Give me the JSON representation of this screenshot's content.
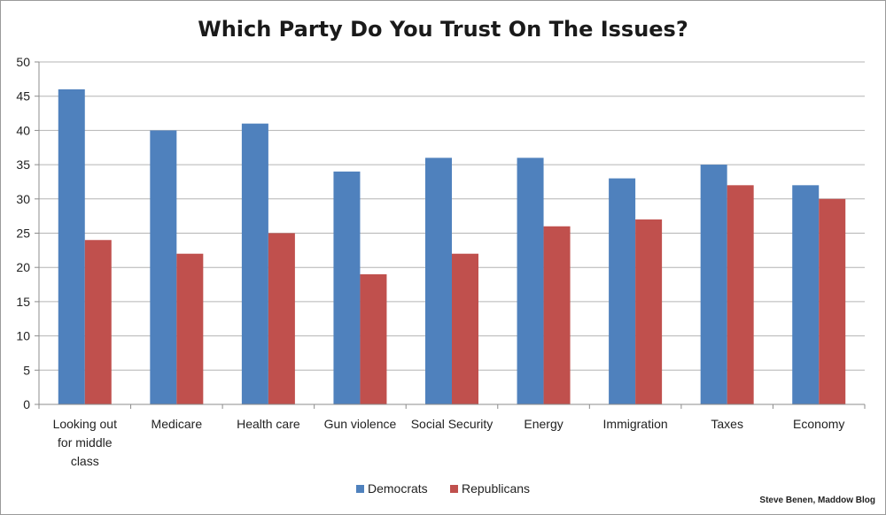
{
  "chart_data": {
    "type": "bar",
    "title": "Which Party Do You Trust On The Issues?",
    "xlabel": "",
    "ylabel": "",
    "ylim": [
      0,
      50
    ],
    "yticks": [
      0,
      5,
      10,
      15,
      20,
      25,
      30,
      35,
      40,
      45,
      50
    ],
    "grid": true,
    "legend": "bottom",
    "categories": [
      [
        "Looking out",
        "for middle",
        "class"
      ],
      [
        "Medicare"
      ],
      [
        "Health care"
      ],
      [
        "Gun violence"
      ],
      [
        "Social Security"
      ],
      [
        "Energy"
      ],
      [
        "Immigration"
      ],
      [
        "Taxes"
      ],
      [
        "Economy"
      ]
    ],
    "series": [
      {
        "name": "Democrats",
        "color": "#4f81bd",
        "values": [
          46,
          40,
          41,
          34,
          36,
          36,
          33,
          35,
          32
        ]
      },
      {
        "name": "Republicans",
        "color": "#c0504d",
        "values": [
          24,
          22,
          25,
          19,
          22,
          26,
          27,
          32,
          30
        ]
      }
    ]
  },
  "credit": "Steve Benen, Maddow Blog"
}
